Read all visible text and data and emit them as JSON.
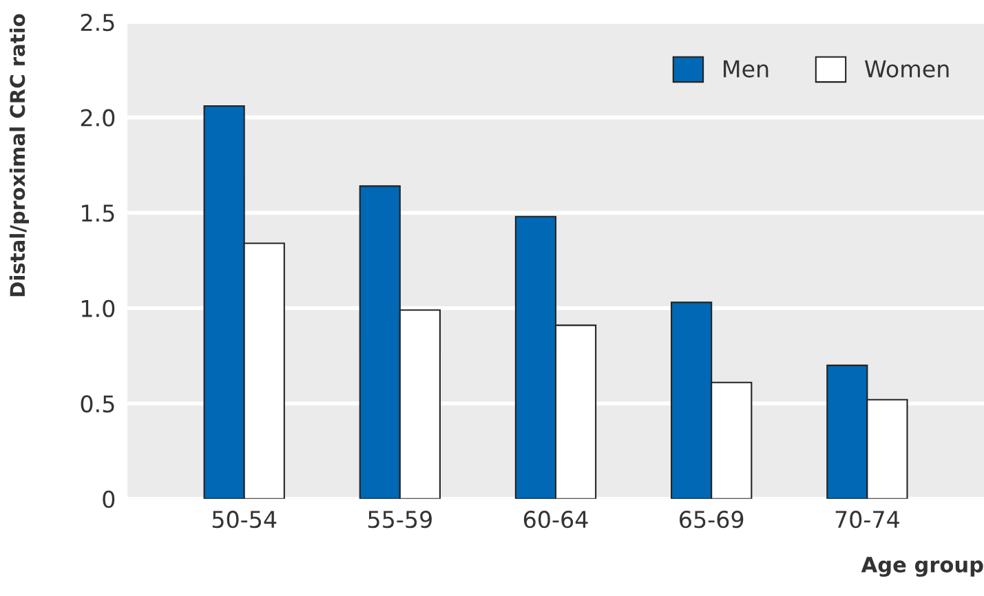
{
  "chart_data": {
    "type": "bar",
    "xlabel": "Age group",
    "ylabel": "Distal/proximal CRC ratio",
    "categories": [
      "50-54",
      "55-59",
      "60-64",
      "65-69",
      "70-74"
    ],
    "series": [
      {
        "name": "Men",
        "color": "#0068b4",
        "values": [
          2.06,
          1.64,
          1.48,
          1.03,
          0.7
        ]
      },
      {
        "name": "Women",
        "color": "#ffffff",
        "values": [
          1.34,
          0.99,
          0.91,
          0.61,
          0.52
        ]
      }
    ],
    "ylim": [
      0,
      2.5
    ],
    "yticks": [
      0,
      0.5,
      {
        "value": 1,
        "label": "1.0"
      },
      1.5,
      {
        "value": 2,
        "label": "2.0"
      },
      2.5
    ],
    "grid": "y",
    "legend": "top right"
  }
}
